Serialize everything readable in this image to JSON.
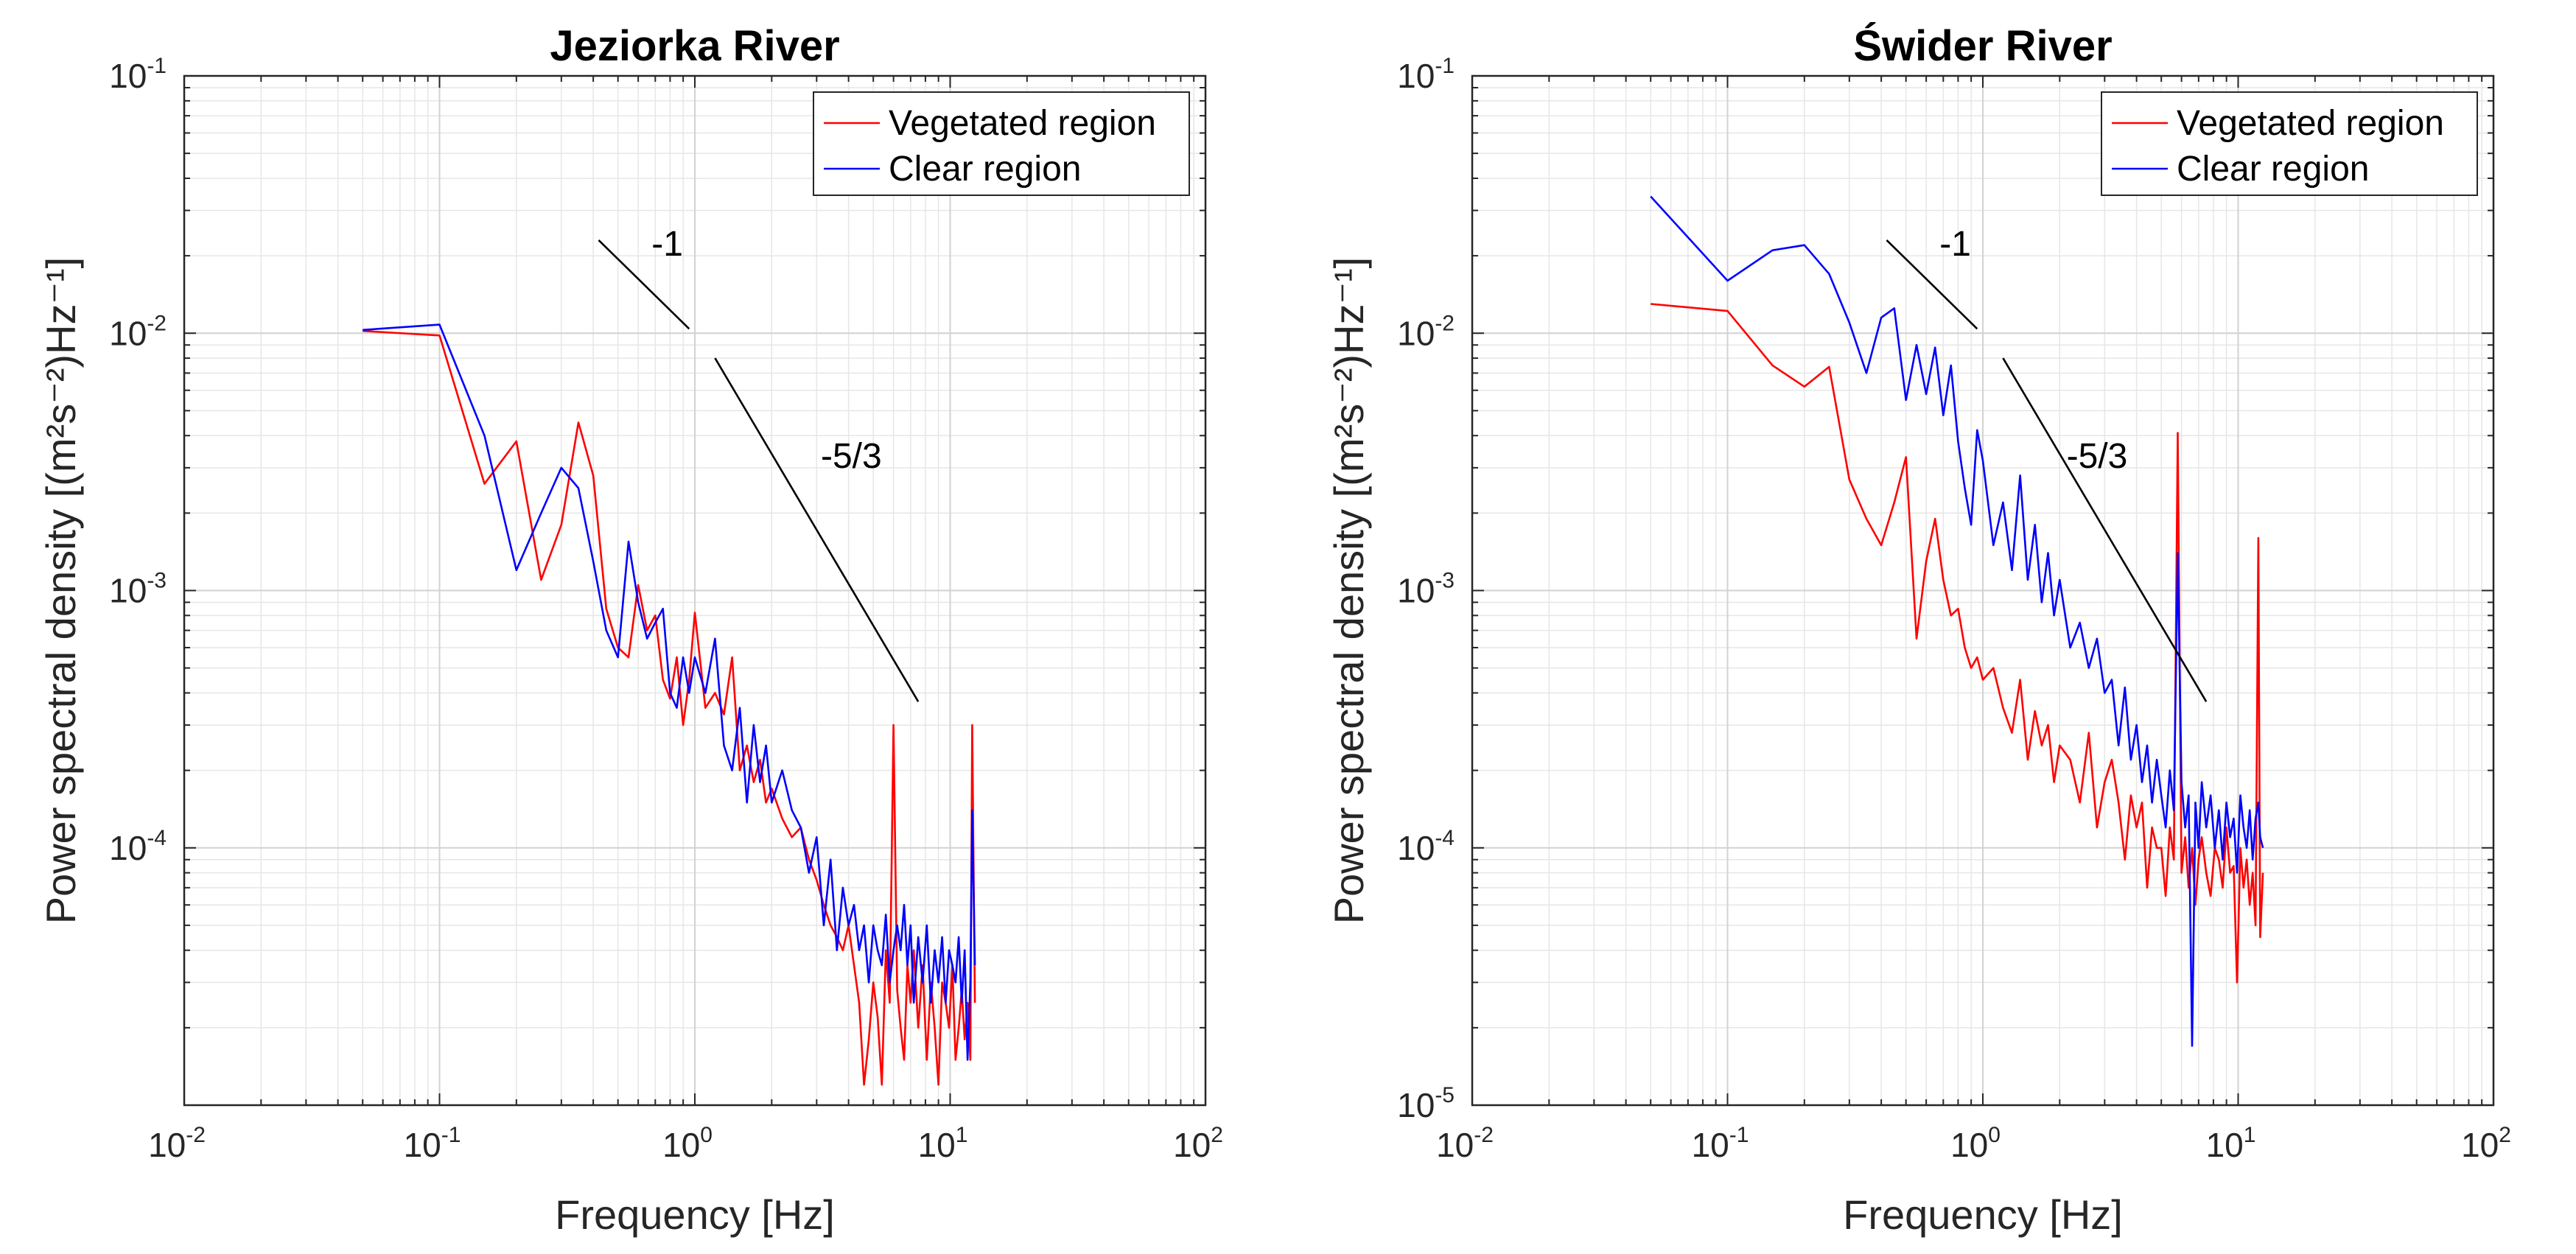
{
  "figure": {
    "background": "#ffffff"
  },
  "chart_data": [
    {
      "type": "line",
      "title": "Jeziorka River",
      "xlabel": "Frequency [Hz]",
      "ylabel": "Power spectral density [(m²s⁻²)Hz⁻¹]",
      "xscale": "log",
      "yscale": "log",
      "xlim": [
        0.01,
        100
      ],
      "ylim": [
        1e-05,
        0.1
      ],
      "grid": true,
      "legend_position": "top-right",
      "x_ticks": [
        {
          "value": 0.01,
          "base": "10",
          "exp": "-2"
        },
        {
          "value": 0.1,
          "base": "10",
          "exp": "-1"
        },
        {
          "value": 1,
          "base": "10",
          "exp": "0"
        },
        {
          "value": 10,
          "base": "10",
          "exp": "1"
        },
        {
          "value": 100,
          "base": "10",
          "exp": "2"
        }
      ],
      "y_ticks": [
        {
          "value": 0.0001,
          "base": "10",
          "exp": "-4"
        },
        {
          "value": 0.001,
          "base": "10",
          "exp": "-3"
        },
        {
          "value": 0.01,
          "base": "10",
          "exp": "-2"
        },
        {
          "value": 0.1,
          "base": "10",
          "exp": "-1"
        }
      ],
      "series": [
        {
          "name": "Vegetated region",
          "color": "#ff0000",
          "x": [
            0.05,
            0.1,
            0.15,
            0.2,
            0.25,
            0.3,
            0.35,
            0.4,
            0.45,
            0.5,
            0.55,
            0.6,
            0.65,
            0.7,
            0.75,
            0.8,
            0.85,
            0.9,
            0.95,
            1.0,
            1.1,
            1.2,
            1.3,
            1.4,
            1.5,
            1.6,
            1.7,
            1.8,
            1.9,
            2.0,
            2.2,
            2.4,
            2.6,
            2.8,
            3.0,
            3.2,
            3.4,
            3.6,
            3.8,
            4.0,
            4.2,
            4.4,
            4.6,
            4.8,
            5.0,
            5.2,
            5.4,
            5.6,
            5.8,
            6.0,
            6.2,
            6.4,
            6.6,
            6.8,
            7.0,
            7.2,
            7.5,
            7.8,
            8.1,
            8.4,
            8.7,
            9.0,
            9.3,
            9.6,
            9.9,
            10.2,
            10.5,
            10.8,
            11.1,
            11.4,
            11.7,
            12.0,
            12.2,
            12.5
          ],
          "y": [
            0.0102,
            0.0098,
            0.0026,
            0.0038,
            0.0011,
            0.0018,
            0.0045,
            0.0028,
            0.00085,
            0.0006,
            0.00055,
            0.00105,
            0.0007,
            0.0008,
            0.00045,
            0.00038,
            0.00055,
            0.0003,
            0.00045,
            0.00082,
            0.00035,
            0.0004,
            0.00033,
            0.00055,
            0.0002,
            0.00025,
            0.00018,
            0.00022,
            0.00015,
            0.00017,
            0.00013,
            0.00011,
            0.00012,
            9e-05,
            7.5e-05,
            6e-05,
            5e-05,
            4.5e-05,
            4e-05,
            5e-05,
            3.5e-05,
            2.5e-05,
            1.2e-05,
            1.8e-05,
            3e-05,
            2.2e-05,
            1.2e-05,
            4e-05,
            2.5e-05,
            0.0003,
            2.8e-05,
            2e-05,
            1.5e-05,
            3.5e-05,
            2.5e-05,
            4e-05,
            2e-05,
            3.5e-05,
            1.5e-05,
            3e-05,
            2e-05,
            1.2e-05,
            3e-05,
            2.5e-05,
            2e-05,
            3.5e-05,
            1.5e-05,
            2e-05,
            2.8e-05,
            1.8e-05,
            2.5e-05,
            1.5e-05,
            0.0003,
            2.5e-05
          ]
        },
        {
          "name": "Clear region",
          "color": "#0000ff",
          "x": [
            0.05,
            0.1,
            0.15,
            0.2,
            0.25,
            0.3,
            0.35,
            0.4,
            0.45,
            0.5,
            0.55,
            0.6,
            0.65,
            0.7,
            0.75,
            0.8,
            0.85,
            0.9,
            0.95,
            1.0,
            1.1,
            1.2,
            1.3,
            1.4,
            1.5,
            1.6,
            1.7,
            1.8,
            1.9,
            2.0,
            2.2,
            2.4,
            2.6,
            2.8,
            3.0,
            3.2,
            3.4,
            3.6,
            3.8,
            4.0,
            4.2,
            4.4,
            4.6,
            4.8,
            5.0,
            5.2,
            5.4,
            5.6,
            5.8,
            6.0,
            6.2,
            6.4,
            6.6,
            6.8,
            7.0,
            7.2,
            7.5,
            7.8,
            8.1,
            8.4,
            8.7,
            9.0,
            9.3,
            9.6,
            9.9,
            10.2,
            10.5,
            10.8,
            11.1,
            11.4,
            11.7,
            12.0,
            12.2,
            12.5
          ],
          "y": [
            0.0103,
            0.0108,
            0.004,
            0.0012,
            0.002,
            0.003,
            0.0025,
            0.0013,
            0.0007,
            0.00055,
            0.00155,
            0.0009,
            0.00065,
            0.00075,
            0.00085,
            0.0004,
            0.00035,
            0.00055,
            0.0004,
            0.00055,
            0.0004,
            0.00065,
            0.00025,
            0.0002,
            0.00035,
            0.00015,
            0.0003,
            0.00018,
            0.00025,
            0.00015,
            0.0002,
            0.00014,
            0.00012,
            8e-05,
            0.00011,
            5e-05,
            9e-05,
            4e-05,
            7e-05,
            5e-05,
            6e-05,
            4e-05,
            5e-05,
            3e-05,
            5e-05,
            4e-05,
            3.5e-05,
            5.5e-05,
            3e-05,
            4e-05,
            5e-05,
            4e-05,
            6e-05,
            3.5e-05,
            5e-05,
            2.5e-05,
            4.5e-05,
            3e-05,
            5e-05,
            2.5e-05,
            4e-05,
            3e-05,
            4.5e-05,
            2.5e-05,
            4e-05,
            3.5e-05,
            3e-05,
            4.5e-05,
            2.5e-05,
            4e-05,
            1.5e-05,
            3e-05,
            0.00014,
            3.5e-05
          ]
        }
      ],
      "annotations": [
        {
          "label": "-1",
          "slope_text": "-1",
          "line": {
            "x": [
              0.42,
              0.95
            ],
            "y": [
              0.023,
              0.0104
            ]
          },
          "label_at": {
            "x": 0.78,
            "y": 0.02
          }
        },
        {
          "label": "-5/3",
          "slope_text": "-5/3",
          "line": {
            "x": [
              1.2,
              7.5
            ],
            "y": [
              0.008,
              0.00037
            ]
          },
          "label_at": {
            "x": 4.1,
            "y": 0.003
          }
        }
      ]
    },
    {
      "type": "line",
      "title": "Świder River",
      "xlabel": "Frequency [Hz]",
      "ylabel": "Power spectral density [(m²s⁻²)Hz⁻¹]",
      "xscale": "log",
      "yscale": "log",
      "xlim": [
        0.01,
        100
      ],
      "ylim": [
        1e-05,
        0.1
      ],
      "grid": true,
      "legend_position": "top-right",
      "x_ticks": [
        {
          "value": 0.01,
          "base": "10",
          "exp": "-2"
        },
        {
          "value": 0.1,
          "base": "10",
          "exp": "-1"
        },
        {
          "value": 1,
          "base": "10",
          "exp": "0"
        },
        {
          "value": 10,
          "base": "10",
          "exp": "1"
        },
        {
          "value": 100,
          "base": "10",
          "exp": "2"
        }
      ],
      "y_ticks": [
        {
          "value": 1e-05,
          "base": "10",
          "exp": "-5"
        },
        {
          "value": 0.0001,
          "base": "10",
          "exp": "-4"
        },
        {
          "value": 0.001,
          "base": "10",
          "exp": "-3"
        },
        {
          "value": 0.01,
          "base": "10",
          "exp": "-2"
        },
        {
          "value": 0.1,
          "base": "10",
          "exp": "-1"
        }
      ],
      "series": [
        {
          "name": "Vegetated region",
          "color": "#ff0000",
          "x": [
            0.05,
            0.1,
            0.15,
            0.2,
            0.25,
            0.3,
            0.35,
            0.4,
            0.45,
            0.5,
            0.55,
            0.6,
            0.65,
            0.7,
            0.75,
            0.8,
            0.85,
            0.9,
            0.95,
            1.0,
            1.1,
            1.2,
            1.3,
            1.4,
            1.5,
            1.6,
            1.7,
            1.8,
            1.9,
            2.0,
            2.2,
            2.4,
            2.6,
            2.8,
            3.0,
            3.2,
            3.4,
            3.6,
            3.8,
            4.0,
            4.2,
            4.4,
            4.6,
            4.8,
            5.0,
            5.2,
            5.4,
            5.6,
            5.8,
            6.0,
            6.2,
            6.4,
            6.6,
            6.8,
            7.0,
            7.2,
            7.5,
            7.8,
            8.1,
            8.4,
            8.7,
            9.0,
            9.3,
            9.6,
            9.9,
            10.2,
            10.5,
            10.8,
            11.1,
            11.4,
            11.7,
            12.0,
            12.2,
            12.5
          ],
          "y": [
            0.013,
            0.0122,
            0.0075,
            0.0062,
            0.0074,
            0.0027,
            0.0019,
            0.0015,
            0.0022,
            0.0033,
            0.00065,
            0.0013,
            0.0019,
            0.0011,
            0.0008,
            0.00085,
            0.0006,
            0.0005,
            0.00055,
            0.00045,
            0.0005,
            0.00035,
            0.00028,
            0.00045,
            0.00022,
            0.00034,
            0.00025,
            0.0003,
            0.00018,
            0.00025,
            0.00022,
            0.00015,
            0.00028,
            0.00012,
            0.00018,
            0.00022,
            0.00015,
            9e-05,
            0.00016,
            0.00012,
            0.00015,
            7e-05,
            0.00012,
            0.0001,
            0.0001,
            6.5e-05,
            0.00012,
            9e-05,
            0.0041,
            8e-05,
            0.00011,
            7e-05,
            0.0001,
            6e-05,
            9e-05,
            0.00011,
            8e-05,
            6.5e-05,
            0.0001,
            9e-05,
            7e-05,
            0.00012,
            8e-05,
            8.5e-05,
            3e-05,
            0.0001,
            7e-05,
            9e-05,
            6e-05,
            8e-05,
            5e-05,
            0.0016,
            4.5e-05,
            8e-05
          ]
        },
        {
          "name": "Clear region",
          "color": "#0000ff",
          "x": [
            0.05,
            0.1,
            0.15,
            0.2,
            0.25,
            0.3,
            0.35,
            0.4,
            0.45,
            0.5,
            0.55,
            0.6,
            0.65,
            0.7,
            0.75,
            0.8,
            0.85,
            0.9,
            0.95,
            1.0,
            1.1,
            1.2,
            1.3,
            1.4,
            1.5,
            1.6,
            1.7,
            1.8,
            1.9,
            2.0,
            2.2,
            2.4,
            2.6,
            2.8,
            3.0,
            3.2,
            3.4,
            3.6,
            3.8,
            4.0,
            4.2,
            4.4,
            4.6,
            4.8,
            5.0,
            5.2,
            5.4,
            5.6,
            5.8,
            6.0,
            6.2,
            6.4,
            6.6,
            6.8,
            7.0,
            7.2,
            7.5,
            7.8,
            8.1,
            8.4,
            8.7,
            9.0,
            9.3,
            9.6,
            9.9,
            10.2,
            10.5,
            10.8,
            11.1,
            11.4,
            11.7,
            12.0,
            12.2,
            12.5
          ],
          "y": [
            0.034,
            0.016,
            0.021,
            0.022,
            0.017,
            0.011,
            0.007,
            0.0115,
            0.0125,
            0.0055,
            0.009,
            0.0058,
            0.0088,
            0.0048,
            0.0075,
            0.0038,
            0.0025,
            0.0018,
            0.0042,
            0.0032,
            0.0015,
            0.0022,
            0.0012,
            0.0028,
            0.0011,
            0.0018,
            0.0009,
            0.0014,
            0.0008,
            0.0011,
            0.0006,
            0.00075,
            0.0005,
            0.00065,
            0.0004,
            0.00045,
            0.00025,
            0.00042,
            0.00022,
            0.0003,
            0.00018,
            0.00025,
            0.00015,
            0.00022,
            0.00016,
            0.00012,
            0.0002,
            0.00014,
            0.0014,
            0.00018,
            0.00012,
            0.00016,
            1.7e-05,
            0.00015,
            0.0001,
            0.00018,
            0.00012,
            0.00016,
            0.0001,
            0.00014,
            9e-05,
            0.00015,
            0.00011,
            0.00013,
            8e-05,
            0.00016,
            0.00012,
            0.0001,
            0.00014,
            9e-05,
            0.00013,
            0.00015,
            0.00011,
            0.0001
          ]
        }
      ],
      "annotations": [
        {
          "label": "-1",
          "slope_text": "-1",
          "line": {
            "x": [
              0.42,
              0.95
            ],
            "y": [
              0.023,
              0.0104
            ]
          },
          "label_at": {
            "x": 0.78,
            "y": 0.02
          }
        },
        {
          "label": "-5/3",
          "slope_text": "-5/3",
          "line": {
            "x": [
              1.2,
              7.5
            ],
            "y": [
              0.008,
              0.00037
            ]
          },
          "label_at": {
            "x": 2.8,
            "y": 0.003
          }
        }
      ]
    }
  ]
}
